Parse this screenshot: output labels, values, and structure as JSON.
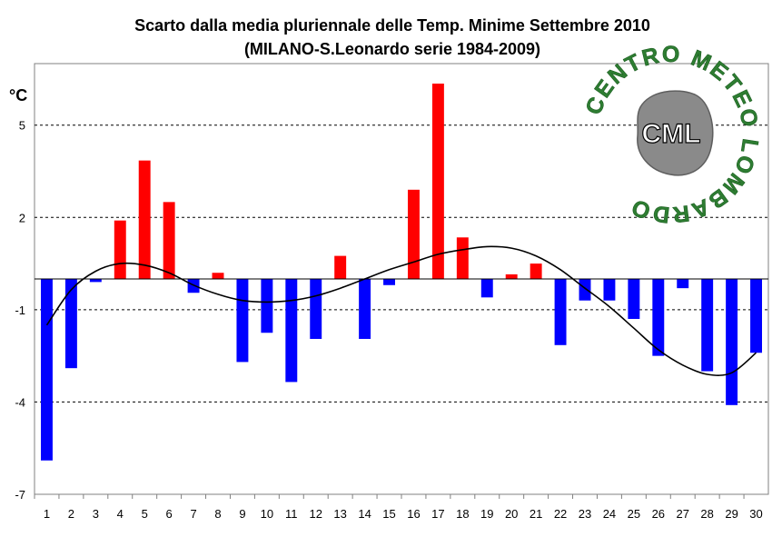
{
  "chart_data": {
    "type": "bar",
    "title": "Scarto dalla media pluriennale delle Temp. Minime Settembre 2010",
    "subtitle": "(MILANO-S.Leonardo serie 1984-2009)",
    "ylabel": "°C",
    "xlabel": "",
    "ylim": [
      -7,
      7
    ],
    "y_ticks": [
      5,
      2,
      -1,
      -4,
      -7
    ],
    "grid": "horizontal dashed",
    "categories": [
      "1",
      "2",
      "3",
      "4",
      "5",
      "6",
      "7",
      "8",
      "9",
      "10",
      "11",
      "12",
      "13",
      "14",
      "15",
      "16",
      "17",
      "18",
      "19",
      "20",
      "21",
      "22",
      "23",
      "24",
      "25",
      "26",
      "27",
      "28",
      "29",
      "30"
    ],
    "values": [
      -5.9,
      -2.9,
      -0.1,
      1.9,
      3.85,
      2.5,
      -0.45,
      0.2,
      -2.7,
      -1.75,
      -3.35,
      -1.95,
      0.75,
      -1.95,
      -0.2,
      2.9,
      6.35,
      1.35,
      -0.6,
      0.15,
      0.5,
      -2.15,
      -0.7,
      -0.7,
      -1.3,
      -2.5,
      -0.3,
      -3.0,
      -4.1,
      -2.4
    ],
    "trend_line": [
      -1.5,
      -0.35,
      0.25,
      0.5,
      0.45,
      0.2,
      -0.2,
      -0.5,
      -0.7,
      -0.75,
      -0.7,
      -0.55,
      -0.3,
      0.0,
      0.3,
      0.55,
      0.8,
      0.95,
      1.05,
      1.0,
      0.75,
      0.3,
      -0.3,
      -0.9,
      -1.6,
      -2.3,
      -2.8,
      -3.1,
      -3.05,
      -2.4
    ],
    "colors": {
      "positive": "#ff0000",
      "negative": "#0000ff",
      "trend": "#000000"
    }
  },
  "logo": {
    "text": "CML",
    "ring_text": "CENTRO METEO LOMBARDO",
    "color": "#2e7d32"
  }
}
